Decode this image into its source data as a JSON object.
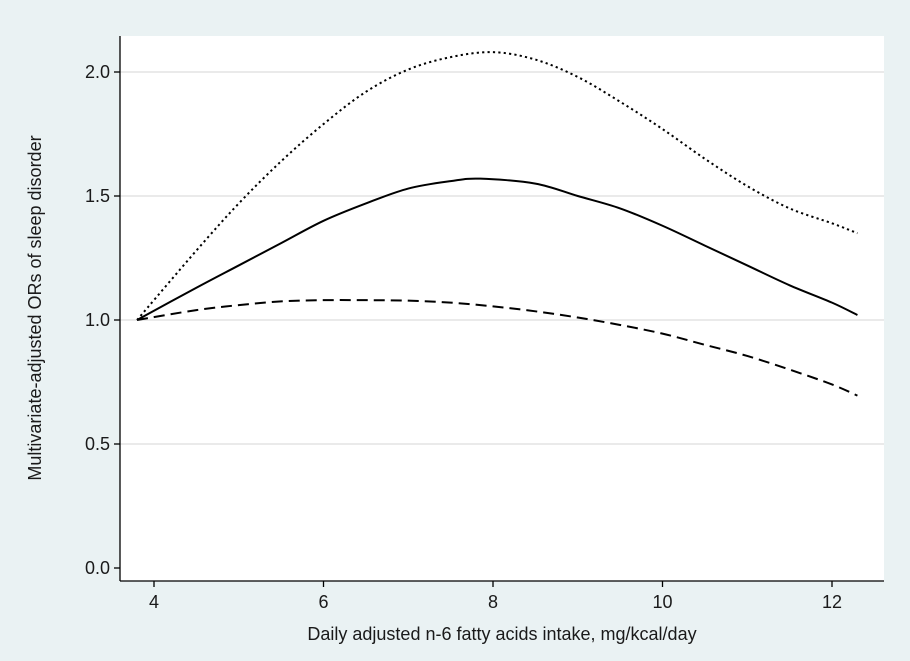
{
  "chart_data": {
    "type": "line",
    "title": "",
    "xlabel": "Daily adjusted n-6 fatty acids intake, mg/kcal/day",
    "ylabel": "Multivariate-adjusted ORs of sleep disorder",
    "xlim": [
      3.7,
      12.4
    ],
    "ylim": [
      0.0,
      2.15
    ],
    "xticks": [
      4,
      6,
      8,
      10,
      12
    ],
    "xtick_labels": [
      "4",
      "6",
      "8",
      "10",
      "12"
    ],
    "yticks": [
      0.0,
      0.5,
      1.0,
      1.5,
      2.0
    ],
    "ytick_labels": [
      "0.0",
      "0.5",
      "1.0",
      "1.5",
      "2.0"
    ],
    "grid": "horizontal",
    "legend": "none",
    "series": [
      {
        "style": "dotted",
        "color": "#000000",
        "x": [
          3.8,
          4.5,
          5.0,
          5.5,
          6.0,
          6.5,
          7.0,
          7.5,
          8.0,
          8.5,
          9.0,
          9.5,
          10.0,
          10.5,
          11.0,
          11.5,
          12.0,
          12.3
        ],
        "y": [
          1.0,
          1.28,
          1.47,
          1.64,
          1.79,
          1.92,
          2.01,
          2.06,
          2.08,
          2.05,
          1.98,
          1.88,
          1.77,
          1.65,
          1.54,
          1.45,
          1.39,
          1.35
        ]
      },
      {
        "style": "solid",
        "color": "#000000",
        "x": [
          3.8,
          4.5,
          5.0,
          5.5,
          6.0,
          6.5,
          7.0,
          7.5,
          7.85,
          8.5,
          9.0,
          9.5,
          10.0,
          10.5,
          11.0,
          11.5,
          12.0,
          12.3
        ],
        "y": [
          1.0,
          1.13,
          1.22,
          1.31,
          1.4,
          1.47,
          1.53,
          1.56,
          1.57,
          1.55,
          1.5,
          1.45,
          1.38,
          1.3,
          1.22,
          1.14,
          1.07,
          1.02
        ]
      },
      {
        "style": "dashed",
        "color": "#000000",
        "x": [
          3.8,
          4.5,
          5.0,
          5.5,
          6.0,
          6.5,
          7.0,
          7.5,
          8.0,
          8.5,
          9.0,
          9.5,
          10.0,
          10.5,
          11.0,
          11.5,
          12.0,
          12.3
        ],
        "y": [
          1.0,
          1.04,
          1.06,
          1.075,
          1.08,
          1.08,
          1.078,
          1.07,
          1.055,
          1.035,
          1.01,
          0.98,
          0.945,
          0.9,
          0.855,
          0.8,
          0.74,
          0.695
        ]
      }
    ]
  }
}
